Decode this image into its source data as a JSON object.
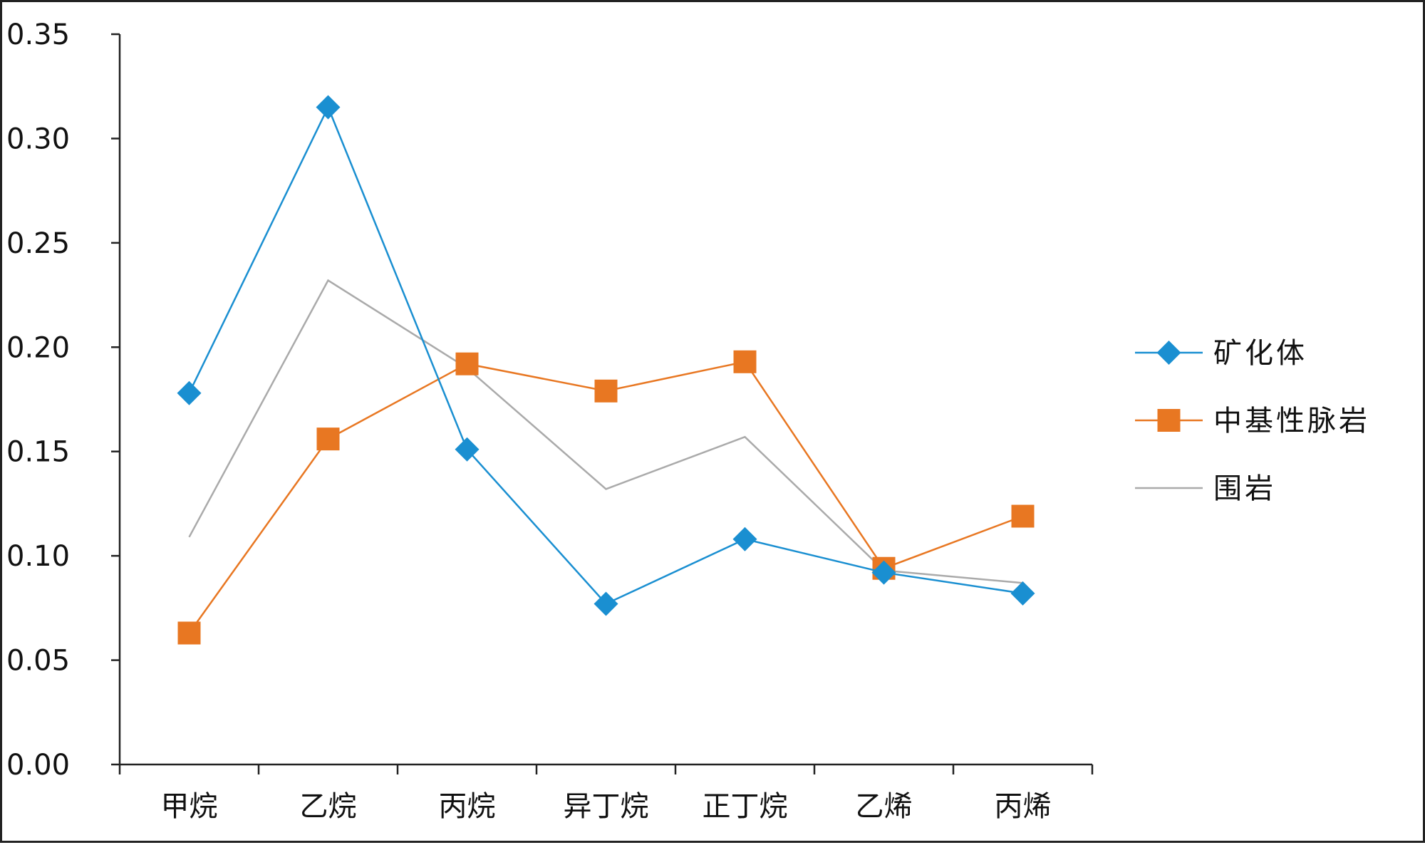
{
  "chart_data": {
    "type": "line",
    "title": "",
    "xlabel": "",
    "ylabel": "",
    "categories": [
      "甲烷",
      "乙烷",
      "丙烷",
      "异丁烷",
      "正丁烷",
      "乙烯",
      "丙烯"
    ],
    "ylim": [
      0,
      0.35
    ],
    "yticks": [
      "0.00",
      "0.05",
      "0.10",
      "0.15",
      "0.20",
      "0.25",
      "0.30",
      "0.35"
    ],
    "grid": false,
    "legend_position": "right",
    "series": [
      {
        "name": "矿化体",
        "values": [
          0.178,
          0.315,
          0.151,
          0.077,
          0.108,
          0.092,
          0.082
        ],
        "color": "#1a8fd1",
        "marker": "diamond"
      },
      {
        "name": "中基性脉岩",
        "values": [
          0.063,
          0.156,
          0.192,
          0.179,
          0.193,
          0.094,
          0.119
        ],
        "color": "#e87722",
        "marker": "square"
      },
      {
        "name": "围岩",
        "values": [
          0.109,
          0.232,
          0.19,
          0.132,
          0.157,
          0.093,
          0.087
        ],
        "color": "#aaaaaa",
        "marker": "none"
      }
    ]
  }
}
